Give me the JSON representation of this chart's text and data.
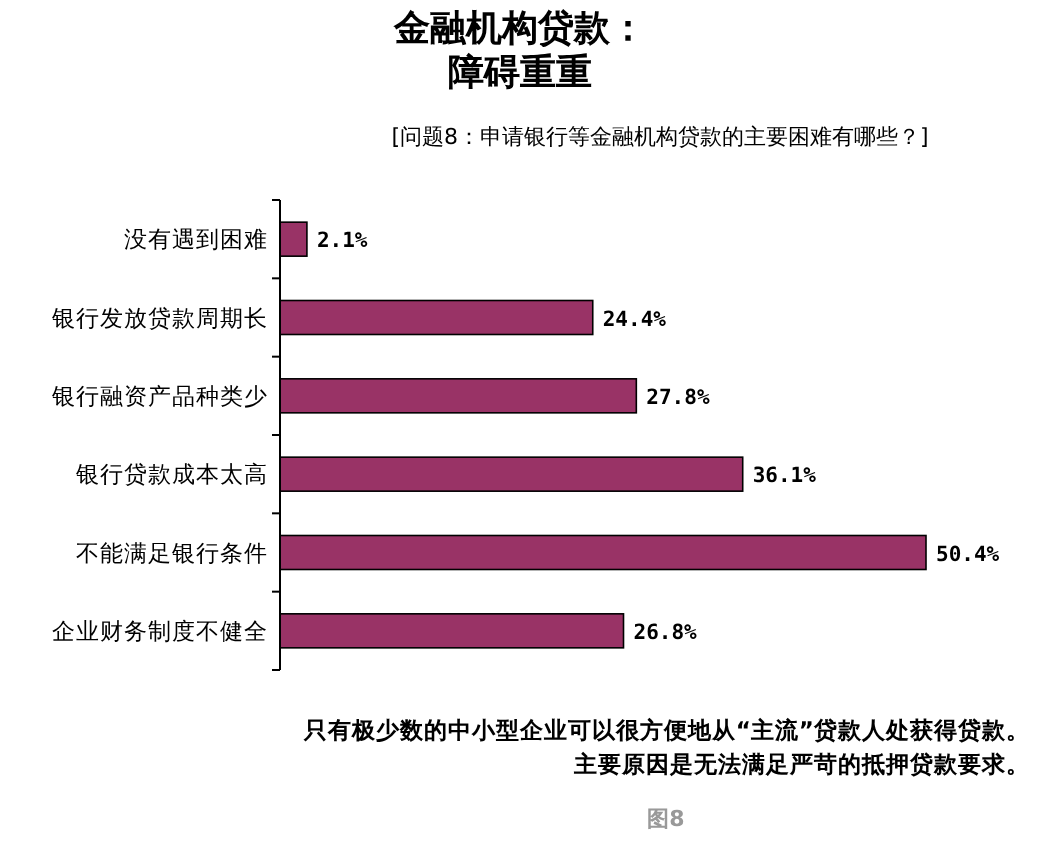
{
  "chart_data": {
    "type": "bar",
    "orientation": "horizontal",
    "title": "金融机构贷款：障碍重重",
    "subtitle": "[问题8：申请银行等金融机构贷款的主要困难有哪些？]",
    "categories": [
      "没有遇到困难",
      "银行发放贷款周期长",
      "银行融资产品种类少",
      "银行贷款成本太高",
      "不能满足银行条件",
      "企业财务制度不健全"
    ],
    "values": [
      2.1,
      24.4,
      27.8,
      36.1,
      50.4,
      26.8
    ],
    "value_labels": [
      "2.1%",
      "24.4%",
      "27.8%",
      "36.1%",
      "50.4%",
      "26.8%"
    ],
    "color": "#993366",
    "annotations": [
      "只有极少数的中小型企业可以很方便地从“主流”贷款人处获得贷款。主要原因是无法满足严苛的抵押贷款要求。",
      "图8"
    ]
  }
}
